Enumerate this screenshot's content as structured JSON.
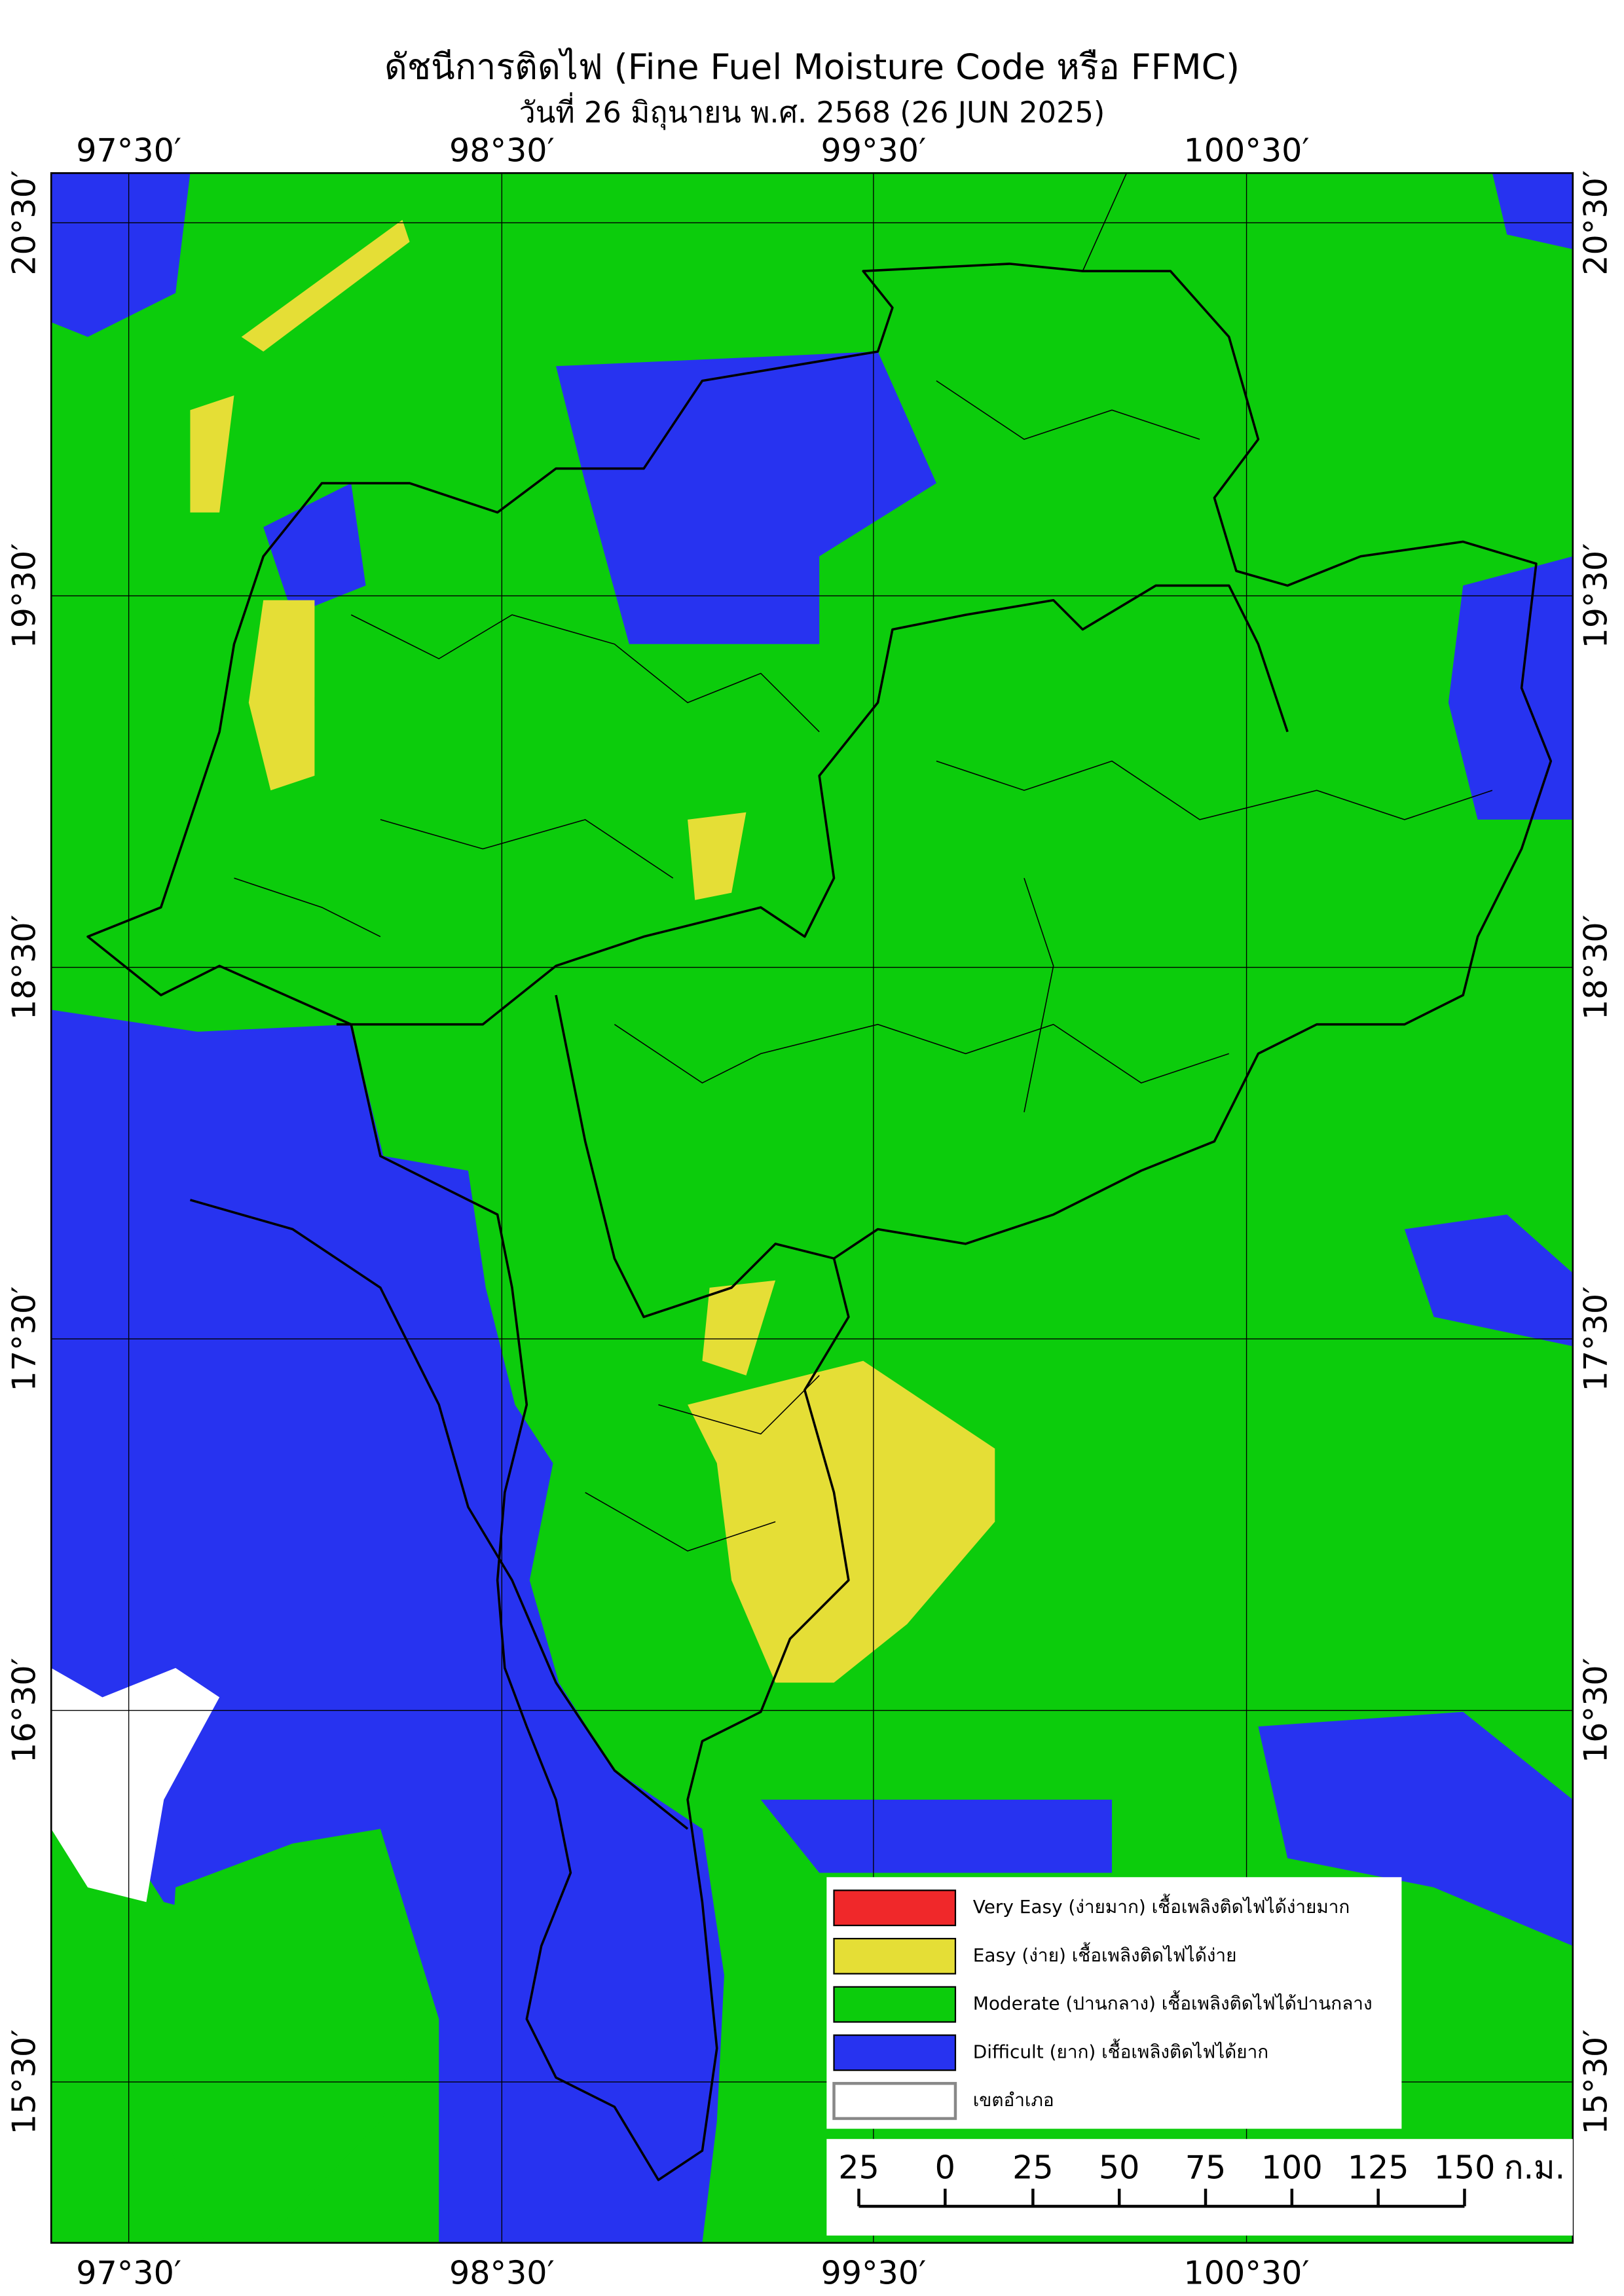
{
  "header": {
    "title": "ดัชนีการติดไฟ (Fine Fuel Moisture Code หรือ FFMC)",
    "subtitle": "วันที่ 26 มิถุนายน พ.ศ. 2568 (26 JUN 2025)"
  },
  "map": {
    "longitude_labels": [
      "97°30′",
      "98°30′",
      "99°30′",
      "100°30′"
    ],
    "latitude_labels": [
      "20°30′",
      "19°30′",
      "18°30′",
      "17°30′",
      "16°30′",
      "15°30′"
    ]
  },
  "legend": {
    "items": [
      {
        "label": "Very Easy (ง่ายมาก) เชื้อเพลิงติดไฟได้ง่ายมาก",
        "color": "#f0282a"
      },
      {
        "label": "Easy (ง่าย) เชื้อเพลิงติดไฟได้ง่าย",
        "color": "#e5de36"
      },
      {
        "label": "Moderate (ปานกลาง) เชื้อเพลิงติดไฟได้ปานกลาง",
        "color": "#0ccc0c"
      },
      {
        "label": "Difficult (ยาก) เชื้อเพลิงติดไฟได้ยาก",
        "color": "#2733f0"
      },
      {
        "label": "เขตอำเภอ",
        "color": "#ffffff"
      }
    ]
  },
  "scale_bar": {
    "labels": [
      "25",
      "0",
      "25",
      "50",
      "75",
      "100",
      "125",
      "150"
    ],
    "unit": "ก.ม."
  }
}
